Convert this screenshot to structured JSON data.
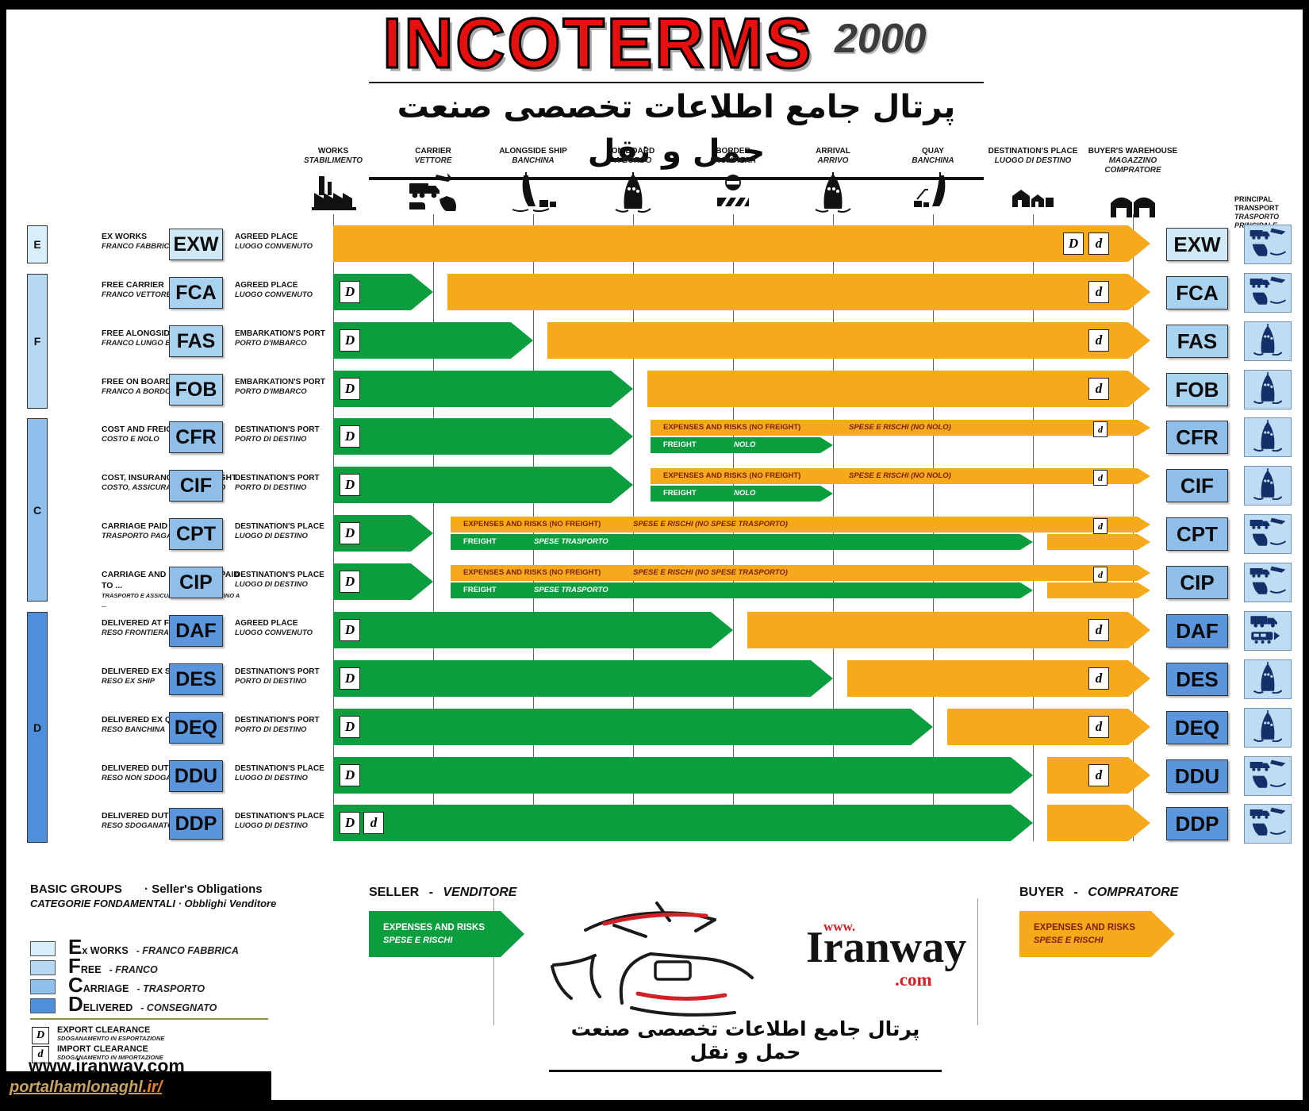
{
  "header": {
    "title": "INCOTERMS",
    "year": "2000",
    "persian": "پرتال جامع اطلاعات تخصصی صنعت حمل و نقل"
  },
  "columns": [
    {
      "en": "WORKS",
      "it": "STABILIMENTO",
      "icon": "factory"
    },
    {
      "en": "CARRIER",
      "it": "VETTORE",
      "icon": "carrier"
    },
    {
      "en": "ALONGSIDE SHIP",
      "it": "BANCHINA",
      "icon": "alongside"
    },
    {
      "en": "ON BOARD",
      "it": "A BORDO",
      "icon": "onboard"
    },
    {
      "en": "BORDER",
      "it": "FRONTIERA",
      "icon": "border"
    },
    {
      "en": "ARRIVAL",
      "it": "ARRIVO",
      "icon": "onboard"
    },
    {
      "en": "QUAY",
      "it": "BANCHINA",
      "icon": "quay"
    },
    {
      "en": "DESTINATION'S PLACE",
      "it": "LUOGO DI DESTINO",
      "icon": "place"
    },
    {
      "en": "BUYER'S WAREHOUSE",
      "it": "MAGAZZINO COMPRATORE",
      "icon": "warehouse"
    }
  ],
  "principal_transport": {
    "en": "PRINCIPAL TRANSPORT",
    "it": "TRASPORTO PRINCIPALE"
  },
  "markers": {
    "export": "D",
    "import": "d"
  },
  "bar_labels": {
    "expenses_no_freight": "EXPENSES AND RISKS (NO FREIGHT)",
    "nolo_it": "SPESE  E RISCHI (NO NOLO)",
    "trasporto_it": "SPESE  E RISCHI (NO SPESE TRASPORTO)",
    "freight": "FREIGHT",
    "freight_nolo_it": "NOLO",
    "freight_trasporto_it": "SPESE TRASPORTO"
  },
  "groups": [
    {
      "letter": "E",
      "first": 0,
      "last": 0,
      "color": "#d8eef9"
    },
    {
      "letter": "F",
      "first": 1,
      "last": 3,
      "color": "#b5d8f3"
    },
    {
      "letter": "C",
      "first": 4,
      "last": 7,
      "color": "#8fc0ec"
    },
    {
      "letter": "D",
      "first": 8,
      "last": 12,
      "color": "#4e8fdb"
    }
  ],
  "rows": [
    {
      "code": "EXW",
      "group": "E",
      "name_en": "EX WORKS",
      "name_it": "FRANCO FABBRICA",
      "place_en": "AGREED PLACE",
      "place_it": "LUOGO CONVENUTO",
      "transport": "multi",
      "bars": {
        "type": "buyer_all"
      }
    },
    {
      "code": "FCA",
      "group": "F",
      "name_en": "FREE CARRIER",
      "name_it": "FRANCO VETTORE",
      "place_en": "AGREED PLACE",
      "place_it": "LUOGO CONVENUTO",
      "transport": "multi",
      "bars": {
        "type": "basic",
        "to": 1
      }
    },
    {
      "code": "FAS",
      "group": "F",
      "name_en": "FREE ALONGSIDE SHIP",
      "name_it": "FRANCO LUNGO BORDO",
      "place_en": "EMBARKATION'S PORT",
      "place_it": "PORTO D'IMBARCO",
      "transport": "ship",
      "bars": {
        "type": "basic",
        "to": 2
      }
    },
    {
      "code": "FOB",
      "group": "F",
      "name_en": "FREE ON BOARD",
      "name_it": "FRANCO A BORDO",
      "place_en": "EMBARKATION'S PORT",
      "place_it": "PORTO D'IMBARCO",
      "transport": "ship",
      "bars": {
        "type": "basic",
        "to": 3
      }
    },
    {
      "code": "CFR",
      "group": "C",
      "name_en": "COST AND FREIGHT",
      "name_it": "COSTO E NOLO",
      "place_en": "DESTINATION'S PORT",
      "place_it": "PORTO DI DESTINO",
      "transport": "ship",
      "bars": {
        "type": "split",
        "d_to": 3,
        "from": 3,
        "freight_to": 5,
        "variant": "nolo"
      }
    },
    {
      "code": "CIF",
      "group": "C",
      "name_en": "COST, INSURANCE AND FREIGHT",
      "name_it": "COSTO, ASSICURAZIONE E NOLO",
      "place_en": "DESTINATION'S PORT",
      "place_it": "PORTO DI DESTINO",
      "transport": "ship",
      "bars": {
        "type": "split",
        "d_to": 3,
        "from": 3,
        "freight_to": 5,
        "variant": "nolo"
      }
    },
    {
      "code": "CPT",
      "group": "C",
      "name_en": "CARRIAGE PAID TO ...",
      "name_it": "TRASPORTO PAGATO FINO A ...",
      "place_en": "DESTINATION'S PLACE",
      "place_it": "LUOGO DI DESTINO",
      "transport": "multi",
      "bars": {
        "type": "split",
        "d_to": 1,
        "from": 1,
        "freight_to": 7,
        "variant": "trasporto",
        "tail": true
      }
    },
    {
      "code": "CIP",
      "group": "C",
      "name_en": "CARRIAGE AND INSURANCE PAID TO ...",
      "name_it": "TRASPORTO E ASSICURAZIONE PAGATI FINO A ...",
      "place_en": "DESTINATION'S PLACE",
      "place_it": "LUOGO DI DESTINO",
      "transport": "multi",
      "bars": {
        "type": "split",
        "d_to": 1,
        "from": 1,
        "freight_to": 7,
        "variant": "trasporto",
        "tail": true
      }
    },
    {
      "code": "DAF",
      "group": "D",
      "name_en": "DELIVERED AT FRONTIER",
      "name_it": "RESO FRONTIERA",
      "place_en": "AGREED PLACE",
      "place_it": "LUOGO CONVENUTO",
      "transport": "land",
      "bars": {
        "type": "basic",
        "to": 4
      }
    },
    {
      "code": "DES",
      "group": "D",
      "name_en": "DELIVERED EX SHIP",
      "name_it": "RESO EX SHIP",
      "place_en": "DESTINATION'S PORT",
      "place_it": "PORTO DI DESTINO",
      "transport": "ship",
      "bars": {
        "type": "basic",
        "to": 5
      }
    },
    {
      "code": "DEQ",
      "group": "D",
      "name_en": "DELIVERED EX QUAY",
      "name_it": "RESO BANCHINA",
      "place_en": "DESTINATION'S PORT",
      "place_it": "PORTO DI DESTINO",
      "transport": "ship",
      "bars": {
        "type": "basic",
        "to": 6
      }
    },
    {
      "code": "DDU",
      "group": "D",
      "name_en": "DELIVERED DUTY UNPAID",
      "name_it": "RESO NON SDOGANATO",
      "place_en": "DESTINATION'S PLACE",
      "place_it": "LUOGO DI DESTINO",
      "transport": "multi",
      "bars": {
        "type": "basic",
        "to": 7
      }
    },
    {
      "code": "DDP",
      "group": "D",
      "name_en": "DELIVERED DUTY PAID",
      "name_it": "RESO SDOGANATO",
      "place_en": "DESTINATION'S PLACE",
      "place_it": "LUOGO DI DESTINO",
      "transport": "multi",
      "bars": {
        "type": "basic",
        "to": 7,
        "both": true
      }
    }
  ],
  "colors": {
    "seller_green": "#0b9e3f",
    "buyer_orange": "#f6a91b",
    "orange_text": "#7a1f00",
    "badge": {
      "E": "#cfe9f7",
      "F": "#a9d2f0",
      "C": "#8fbee9",
      "D": "#5b95dc"
    }
  },
  "legend": {
    "groups_en": "BASIC GROUPS",
    "obligations": "· Seller's Obligations",
    "groups_it": "CATEGORIE FONDAMENTALI · Obblighi Venditore",
    "items": [
      {
        "initial": "E",
        "rest": "x WORKS",
        "it": "- FRANCO FABBRICA",
        "color": "#d8eef9"
      },
      {
        "initial": "F",
        "rest": "REE",
        "it": "- FRANCO",
        "color": "#b5d8f3"
      },
      {
        "initial": "C",
        "rest": "ARRIAGE",
        "it": "- TRASPORTO",
        "color": "#8fc0ec"
      },
      {
        "initial": "D",
        "rest": "ELIVERED",
        "it": "- CONSEGNATO",
        "color": "#4e8fdb"
      }
    ],
    "export": {
      "mark": "D",
      "en": "EXPORT CLEARANCE",
      "it": "SDOGANAMENTO IN ESPORTAZIONE"
    },
    "import": {
      "mark": "d",
      "en": "IMPORT CLEARANCE",
      "it": "SDOGANAMENTO IN IMPORTAZIONE"
    }
  },
  "footer": {
    "seller": "SELLER",
    "seller_sep": "-",
    "seller_it": "VENDITORE",
    "buyer": "BUYER",
    "buyer_sep": "-",
    "buyer_it": "COMPRATORE",
    "expenses": "EXPENSES AND RISKS",
    "expenses_it": "SPESE  E RISCHI",
    "site": "www.iranway.com",
    "portal_prefix": "portalhamlonaghl",
    "portal_suffix": ".ir/",
    "logo_www": "www.",
    "logo_name": "Iranway",
    "logo_com": ".com",
    "persian": "پرتال جامع اطلاعات تخصصی صنعت حمل و نقل"
  }
}
